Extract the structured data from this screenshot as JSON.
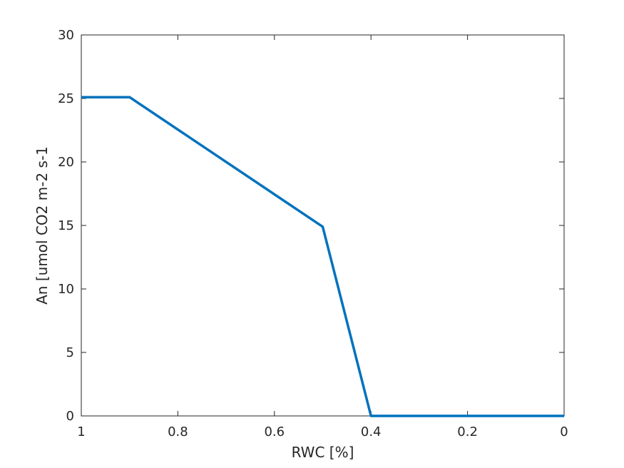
{
  "chart_data": {
    "type": "line",
    "title": "",
    "xlabel": "RWC [%]",
    "ylabel": "An [umol CO2 m-2 s-1",
    "x_reversed": true,
    "xlim": [
      0,
      1
    ],
    "ylim": [
      0,
      30
    ],
    "xticks": [
      1,
      0.8,
      0.6,
      0.4,
      0.2,
      0
    ],
    "xtick_labels": [
      "1",
      "0.8",
      "0.6",
      "0.4",
      "0.2",
      "0"
    ],
    "yticks": [
      0,
      5,
      10,
      15,
      20,
      25,
      30
    ],
    "ytick_labels": [
      "0",
      "5",
      "10",
      "15",
      "20",
      "25",
      "30"
    ],
    "grid": false,
    "series": [
      {
        "name": "An",
        "color": "#0072BD",
        "x": [
          1.0,
          0.9,
          0.5,
          0.4,
          0.0
        ],
        "y": [
          25.1,
          25.1,
          14.9,
          0.0,
          0.0
        ]
      }
    ]
  }
}
